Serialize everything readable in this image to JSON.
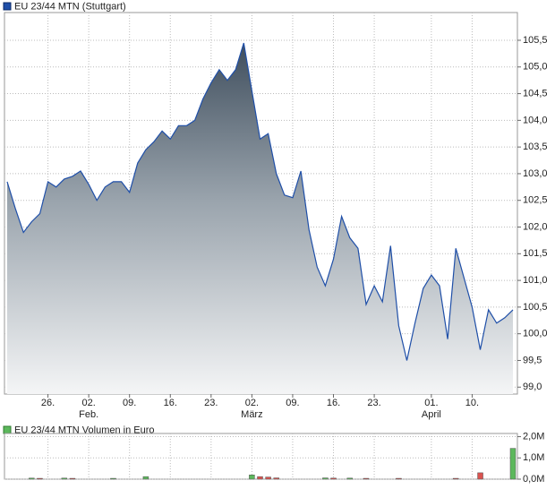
{
  "chart_data": [
    {
      "type": "area",
      "legend": "EU 23/44 MTN (Stuttgart)",
      "color": "#1f4fa8",
      "categories": [
        null,
        null,
        null,
        null,
        null,
        "26.",
        null,
        null,
        null,
        null,
        "02.",
        null,
        null,
        null,
        null,
        "09.",
        null,
        null,
        null,
        null,
        "16.",
        null,
        null,
        null,
        null,
        "23.",
        null,
        null,
        null,
        null,
        "02.",
        null,
        null,
        null,
        null,
        "09.",
        null,
        null,
        null,
        null,
        "16.",
        null,
        null,
        null,
        null,
        "23.",
        null,
        null,
        null,
        null,
        null,
        null,
        "01.",
        null,
        null,
        null,
        null,
        "10.",
        null,
        null,
        null,
        null,
        null
      ],
      "months": [
        {
          "category": 10,
          "label": "Feb."
        },
        {
          "category": 30,
          "label": "März"
        },
        {
          "category": 52,
          "label": "April"
        }
      ],
      "values": [
        102.85,
        102.35,
        101.9,
        102.1,
        102.25,
        102.85,
        102.75,
        102.9,
        102.95,
        103.05,
        102.8,
        102.5,
        102.75,
        102.85,
        102.85,
        102.65,
        103.2,
        103.45,
        103.6,
        103.8,
        103.65,
        103.9,
        103.9,
        104.0,
        104.4,
        104.7,
        104.95,
        104.75,
        104.95,
        105.45,
        104.55,
        103.65,
        103.75,
        103.0,
        102.6,
        102.55,
        103.05,
        101.95,
        101.25,
        100.9,
        101.4,
        102.2,
        101.8,
        101.6,
        100.55,
        100.9,
        100.6,
        101.65,
        100.15,
        99.5,
        100.2,
        100.85,
        101.1,
        100.9,
        99.9,
        101.6,
        101.05,
        100.5,
        99.7,
        100.45,
        100.2,
        100.3,
        100.45
      ],
      "ylim": [
        98.87,
        106.02
      ],
      "yticks": [
        {
          "value": 99.0,
          "label": "99,0"
        },
        {
          "value": 99.5,
          "label": "99,5"
        },
        {
          "value": 100.0,
          "label": "100,0"
        },
        {
          "value": 100.5,
          "label": "100,5"
        },
        {
          "value": 101.0,
          "label": "101,0"
        },
        {
          "value": 101.5,
          "label": "101,5"
        },
        {
          "value": 102.0,
          "label": "102,0"
        },
        {
          "value": 102.5,
          "label": "102,5"
        },
        {
          "value": 103.0,
          "label": "103,0"
        },
        {
          "value": 103.5,
          "label": "103,5"
        },
        {
          "value": 104.0,
          "label": "104,0"
        },
        {
          "value": 104.5,
          "label": "104,5"
        },
        {
          "value": 105.0,
          "label": "105,0"
        },
        {
          "value": 105.5,
          "label": "105,5"
        }
      ],
      "grid": true
    },
    {
      "type": "bar",
      "legend": "EU 23/44 MTN Volumen in Euro",
      "legend_color": "#5cb85c",
      "series": [
        {
          "color": "#5cb85c",
          "values": [
            null,
            null,
            null,
            50000,
            null,
            null,
            null,
            50000,
            null,
            null,
            null,
            null,
            null,
            40000,
            null,
            null,
            null,
            120000,
            null,
            null,
            null,
            null,
            null,
            null,
            null,
            null,
            null,
            null,
            null,
            null,
            200000,
            null,
            null,
            null,
            null,
            null,
            null,
            null,
            null,
            60000,
            null,
            null,
            50000,
            null,
            null,
            null,
            null,
            null,
            null,
            null,
            null,
            null,
            null,
            null,
            null,
            null,
            null,
            null,
            null,
            null,
            null,
            null,
            1450000
          ]
        },
        {
          "color": "#d9534f",
          "values": [
            null,
            null,
            null,
            null,
            40000,
            null,
            null,
            null,
            40000,
            null,
            null,
            null,
            null,
            null,
            null,
            null,
            null,
            null,
            null,
            null,
            null,
            null,
            null,
            null,
            null,
            null,
            null,
            null,
            null,
            null,
            null,
            120000,
            100000,
            60000,
            null,
            null,
            null,
            null,
            null,
            null,
            50000,
            null,
            null,
            null,
            40000,
            null,
            null,
            null,
            40000,
            null,
            null,
            null,
            null,
            null,
            null,
            40000,
            null,
            null,
            300000,
            null,
            null,
            null,
            null
          ]
        }
      ],
      "ylim": [
        0,
        2150000
      ],
      "yticks": [
        {
          "value": 0,
          "label": "0,0M"
        },
        {
          "value": 1000000,
          "label": "1,0M"
        },
        {
          "value": 2000000,
          "label": "2,0M"
        }
      ],
      "grid": true
    }
  ]
}
